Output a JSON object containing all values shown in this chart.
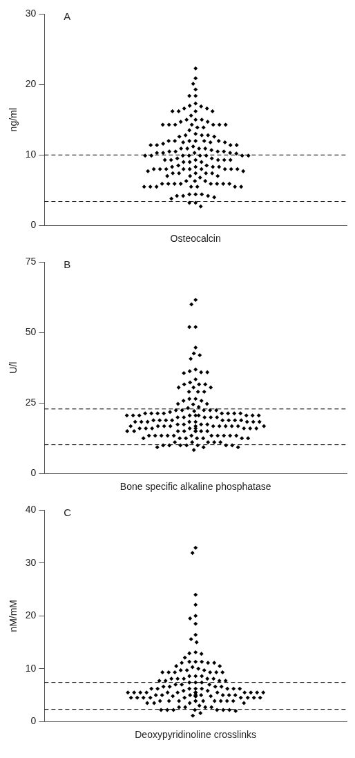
{
  "chart_data": [
    {
      "type": "scatter",
      "categories": [
        "Osteocalcin"
      ],
      "ylabel": "ng/ml",
      "ylim": [
        0,
        30
      ],
      "yticks": [
        0,
        10,
        20,
        30
      ],
      "grid": false,
      "marker": "diamond",
      "annotations": [
        "A"
      ],
      "ref_lines": [
        {
          "axis": "y",
          "value": 10,
          "line_style": "dashed"
        },
        {
          "axis": "y",
          "value": 3.4,
          "line_style": "dashed"
        }
      ],
      "series": [
        {
          "color": "#000000",
          "x": [
            "Osteocalcin",
            "Osteocalcin",
            "Osteocalcin",
            "Osteocalcin",
            "Osteocalcin",
            "Osteocalcin",
            "Osteocalcin",
            "Osteocalcin",
            "Osteocalcin",
            "Osteocalcin",
            "Osteocalcin",
            "Osteocalcin",
            "Osteocalcin",
            "Osteocalcin",
            "Osteocalcin",
            "Osteocalcin",
            "Osteocalcin",
            "Osteocalcin",
            "Osteocalcin",
            "Osteocalcin",
            "Osteocalcin",
            "Osteocalcin",
            "Osteocalcin",
            "Osteocalcin",
            "Osteocalcin",
            "Osteocalcin",
            "Osteocalcin",
            "Osteocalcin",
            "Osteocalcin",
            "Osteocalcin",
            "Osteocalcin",
            "Osteocalcin",
            "Osteocalcin",
            "Osteocalcin",
            "Osteocalcin",
            "Osteocalcin",
            "Osteocalcin",
            "Osteocalcin",
            "Osteocalcin",
            "Osteocalcin",
            "Osteocalcin",
            "Osteocalcin",
            "Osteocalcin",
            "Osteocalcin",
            "Osteocalcin",
            "Osteocalcin",
            "Osteocalcin",
            "Osteocalcin",
            "Osteocalcin",
            "Osteocalcin",
            "Osteocalcin",
            "Osteocalcin",
            "Osteocalcin",
            "Osteocalcin",
            "Osteocalcin",
            "Osteocalcin",
            "Osteocalcin",
            "Osteocalcin",
            "Osteocalcin",
            "Osteocalcin",
            "Osteocalcin",
            "Osteocalcin",
            "Osteocalcin",
            "Osteocalcin",
            "Osteocalcin",
            "Osteocalcin",
            "Osteocalcin",
            "Osteocalcin",
            "Osteocalcin",
            "Osteocalcin",
            "Osteocalcin",
            "Osteocalcin",
            "Osteocalcin",
            "Osteocalcin",
            "Osteocalcin",
            "Osteocalcin",
            "Osteocalcin",
            "Osteocalcin",
            "Osteocalcin",
            "Osteocalcin",
            "Osteocalcin",
            "Osteocalcin",
            "Osteocalcin",
            "Osteocalcin",
            "Osteocalcin",
            "Osteocalcin",
            "Osteocalcin",
            "Osteocalcin",
            "Osteocalcin",
            "Osteocalcin",
            "Osteocalcin",
            "Osteocalcin",
            "Osteocalcin",
            "Osteocalcin",
            "Osteocalcin",
            "Osteocalcin",
            "Osteocalcin",
            "Osteocalcin",
            "Osteocalcin",
            "Osteocalcin",
            "Osteocalcin",
            "Osteocalcin",
            "Osteocalcin",
            "Osteocalcin",
            "Osteocalcin",
            "Osteocalcin",
            "Osteocalcin",
            "Osteocalcin",
            "Osteocalcin",
            "Osteocalcin",
            "Osteocalcin",
            "Osteocalcin",
            "Osteocalcin",
            "Osteocalcin",
            "Osteocalcin",
            "Osteocalcin",
            "Osteocalcin",
            "Osteocalcin",
            "Osteocalcin",
            "Osteocalcin",
            "Osteocalcin",
            "Osteocalcin",
            "Osteocalcin",
            "Osteocalcin",
            "Osteocalcin",
            "Osteocalcin",
            "Osteocalcin",
            "Osteocalcin",
            "Osteocalcin",
            "Osteocalcin",
            "Osteocalcin",
            "Osteocalcin",
            "Osteocalcin",
            "Osteocalcin",
            "Osteocalcin",
            "Osteocalcin",
            "Osteocalcin",
            "Osteocalcin",
            "Osteocalcin",
            "Osteocalcin"
          ],
          "values": [
            22.3,
            20.9,
            20.1,
            19.3,
            18.4,
            18.4,
            17.3,
            17.0,
            16.9,
            16.6,
            16.6,
            16.2,
            16.2,
            16.2,
            16.2,
            15.6,
            15.0,
            15.0,
            15.0,
            14.7,
            14.7,
            14.3,
            14.3,
            14.3,
            14.3,
            14.3,
            14.3,
            14.3,
            13.9,
            13.9,
            13.5,
            13.0,
            12.8,
            12.8,
            12.8,
            12.6,
            12.6,
            12.0,
            12.0,
            12.0,
            12.0,
            12.0,
            12.0,
            11.8,
            11.8,
            11.8,
            11.6,
            11.4,
            11.4,
            11.4,
            11.4,
            11.2,
            10.9,
            10.9,
            10.9,
            10.9,
            10.7,
            10.5,
            10.5,
            10.5,
            10.5,
            10.3,
            10.3,
            10.3,
            10.3,
            10.2,
            9.9,
            9.9,
            9.9,
            9.9,
            9.9,
            9.9,
            9.9,
            9.9,
            9.5,
            9.5,
            9.3,
            9.3,
            9.3,
            9.3,
            9.3,
            9.3,
            9.0,
            9.0,
            9.0,
            8.5,
            8.5,
            8.3,
            8.3,
            8.3,
            8.3,
            8.0,
            8.0,
            8.0,
            8.0,
            8.0,
            8.0,
            8.0,
            8.0,
            8.0,
            7.7,
            7.7,
            7.4,
            7.4,
            7.4,
            7.4,
            7.4,
            7.0,
            7.0,
            7.0,
            6.8,
            6.3,
            6.3,
            6.3,
            5.9,
            5.9,
            5.9,
            5.9,
            5.9,
            5.9,
            5.9,
            5.9,
            5.5,
            5.5,
            5.5,
            5.5,
            5.5,
            5.5,
            5.5,
            4.4,
            4.4,
            4.4,
            4.2,
            4.2,
            4.2,
            4.0,
            3.8,
            3.2,
            3.2,
            2.7
          ]
        }
      ]
    },
    {
      "type": "scatter",
      "categories": [
        "Bone specific alkaline phosphatase"
      ],
      "ylabel": "U/l",
      "ylim": [
        0,
        75
      ],
      "yticks": [
        0,
        25,
        50,
        75
      ],
      "grid": false,
      "marker": "diamond",
      "annotations": [
        "B"
      ],
      "ref_lines": [
        {
          "axis": "y",
          "value": 22.9,
          "line_style": "dashed"
        },
        {
          "axis": "y",
          "value": 10.2,
          "line_style": "dashed"
        }
      ],
      "series": [
        {
          "color": "#000000",
          "x": [
            "Bone specific alkaline phosphatase",
            "Bone specific alkaline phosphatase",
            "Bone specific alkaline phosphatase",
            "Bone specific alkaline phosphatase",
            "Bone specific alkaline phosphatase",
            "Bone specific alkaline phosphatase",
            "Bone specific alkaline phosphatase",
            "Bone specific alkaline phosphatase",
            "Bone specific alkaline phosphatase",
            "Bone specific alkaline phosphatase",
            "Bone specific alkaline phosphatase",
            "Bone specific alkaline phosphatase",
            "Bone specific alkaline phosphatase",
            "Bone specific alkaline phosphatase",
            "Bone specific alkaline phosphatase",
            "Bone specific alkaline phosphatase",
            "Bone specific alkaline phosphatase",
            "Bone specific alkaline phosphatase",
            "Bone specific alkaline phosphatase",
            "Bone specific alkaline phosphatase",
            "Bone specific alkaline phosphatase",
            "Bone specific alkaline phosphatase",
            "Bone specific alkaline phosphatase",
            "Bone specific alkaline phosphatase",
            "Bone specific alkaline phosphatase",
            "Bone specific alkaline phosphatase",
            "Bone specific alkaline phosphatase",
            "Bone specific alkaline phosphatase",
            "Bone specific alkaline phosphatase",
            "Bone specific alkaline phosphatase",
            "Bone specific alkaline phosphatase",
            "Bone specific alkaline phosphatase",
            "Bone specific alkaline phosphatase",
            "Bone specific alkaline phosphatase",
            "Bone specific alkaline phosphatase",
            "Bone specific alkaline phosphatase",
            "Bone specific alkaline phosphatase",
            "Bone specific alkaline phosphatase",
            "Bone specific alkaline phosphatase",
            "Bone specific alkaline phosphatase",
            "Bone specific alkaline phosphatase",
            "Bone specific alkaline phosphatase",
            "Bone specific alkaline phosphatase",
            "Bone specific alkaline phosphatase",
            "Bone specific alkaline phosphatase",
            "Bone specific alkaline phosphatase",
            "Bone specific alkaline phosphatase",
            "Bone specific alkaline phosphatase",
            "Bone specific alkaline phosphatase",
            "Bone specific alkaline phosphatase",
            "Bone specific alkaline phosphatase",
            "Bone specific alkaline phosphatase",
            "Bone specific alkaline phosphatase",
            "Bone specific alkaline phosphatase",
            "Bone specific alkaline phosphatase",
            "Bone specific alkaline phosphatase",
            "Bone specific alkaline phosphatase",
            "Bone specific alkaline phosphatase",
            "Bone specific alkaline phosphatase",
            "Bone specific alkaline phosphatase",
            "Bone specific alkaline phosphatase",
            "Bone specific alkaline phosphatase",
            "Bone specific alkaline phosphatase",
            "Bone specific alkaline phosphatase",
            "Bone specific alkaline phosphatase",
            "Bone specific alkaline phosphatase",
            "Bone specific alkaline phosphatase",
            "Bone specific alkaline phosphatase",
            "Bone specific alkaline phosphatase",
            "Bone specific alkaline phosphatase",
            "Bone specific alkaline phosphatase",
            "Bone specific alkaline phosphatase",
            "Bone specific alkaline phosphatase",
            "Bone specific alkaline phosphatase",
            "Bone specific alkaline phosphatase",
            "Bone specific alkaline phosphatase",
            "Bone specific alkaline phosphatase",
            "Bone specific alkaline phosphatase",
            "Bone specific alkaline phosphatase",
            "Bone specific alkaline phosphatase",
            "Bone specific alkaline phosphatase",
            "Bone specific alkaline phosphatase",
            "Bone specific alkaline phosphatase",
            "Bone specific alkaline phosphatase",
            "Bone specific alkaline phosphatase",
            "Bone specific alkaline phosphatase",
            "Bone specific alkaline phosphatase",
            "Bone specific alkaline phosphatase",
            "Bone specific alkaline phosphatase",
            "Bone specific alkaline phosphatase",
            "Bone specific alkaline phosphatase",
            "Bone specific alkaline phosphatase",
            "Bone specific alkaline phosphatase",
            "Bone specific alkaline phosphatase",
            "Bone specific alkaline phosphatase",
            "Bone specific alkaline phosphatase",
            "Bone specific alkaline phosphatase",
            "Bone specific alkaline phosphatase",
            "Bone specific alkaline phosphatase",
            "Bone specific alkaline phosphatase",
            "Bone specific alkaline phosphatase",
            "Bone specific alkaline phosphatase",
            "Bone specific alkaline phosphatase",
            "Bone specific alkaline phosphatase",
            "Bone specific alkaline phosphatase",
            "Bone specific alkaline phosphatase",
            "Bone specific alkaline phosphatase",
            "Bone specific alkaline phosphatase",
            "Bone specific alkaline phosphatase",
            "Bone specific alkaline phosphatase",
            "Bone specific alkaline phosphatase",
            "Bone specific alkaline phosphatase",
            "Bone specific alkaline phosphatase",
            "Bone specific alkaline phosphatase",
            "Bone specific alkaline phosphatase",
            "Bone specific alkaline phosphatase",
            "Bone specific alkaline phosphatase",
            "Bone specific alkaline phosphatase",
            "Bone specific alkaline phosphatase",
            "Bone specific alkaline phosphatase",
            "Bone specific alkaline phosphatase",
            "Bone specific alkaline phosphatase",
            "Bone specific alkaline phosphatase",
            "Bone specific alkaline phosphatase",
            "Bone specific alkaline phosphatase",
            "Bone specific alkaline phosphatase",
            "Bone specific alkaline phosphatase",
            "Bone specific alkaline phosphatase",
            "Bone specific alkaline phosphatase",
            "Bone specific alkaline phosphatase",
            "Bone specific alkaline phosphatase",
            "Bone specific alkaline phosphatase",
            "Bone specific alkaline phosphatase",
            "Bone specific alkaline phosphatase",
            "Bone specific alkaline phosphatase",
            "Bone specific alkaline phosphatase",
            "Bone specific alkaline phosphatase",
            "Bone specific alkaline phosphatase",
            "Bone specific alkaline phosphatase",
            "Bone specific alkaline phosphatase",
            "Bone specific alkaline phosphatase",
            "Bone specific alkaline phosphatase",
            "Bone specific alkaline phosphatase"
          ],
          "values": [
            61.6,
            60.0,
            52.0,
            52.0,
            44.7,
            42.6,
            42.0,
            40.7,
            36.9,
            36.3,
            35.9,
            35.9,
            35.6,
            33.4,
            32.3,
            31.6,
            31.6,
            31.6,
            30.5,
            30.5,
            30.5,
            29.0,
            29.0,
            29.0,
            26.5,
            26.5,
            25.8,
            25.8,
            24.7,
            24.7,
            24.5,
            23.6,
            23.2,
            22.4,
            22.4,
            22.4,
            22.4,
            22.4,
            22.1,
            21.8,
            21.3,
            21.3,
            21.3,
            21.3,
            21.3,
            21.3,
            21.3,
            21.3,
            20.6,
            20.6,
            20.6,
            20.6,
            20.6,
            20.6,
            20.6,
            20.6,
            20.6,
            19.9,
            19.9,
            19.9,
            19.9,
            19.9,
            18.9,
            18.9,
            18.9,
            18.9,
            18.9,
            18.9,
            18.9,
            18.9,
            18.3,
            18.3,
            18.3,
            18.3,
            18.3,
            18.3,
            18.3,
            18.3,
            17.4,
            17.4,
            17.4,
            17.4,
            16.8,
            16.8,
            16.8,
            16.8,
            16.8,
            16.8,
            16.8,
            16.8,
            16.8,
            16.8,
            16.8,
            16.0,
            16.0,
            16.0,
            16.0,
            16.0,
            16.0,
            16.0,
            16.0,
            15.0,
            15.0,
            15.0,
            15.0,
            15.0,
            15.0,
            15.0,
            15.0,
            13.4,
            13.4,
            13.4,
            13.4,
            13.4,
            13.4,
            13.4,
            13.4,
            13.4,
            13.4,
            13.4,
            12.5,
            12.5,
            12.5,
            12.5,
            12.5,
            12.5,
            12.5,
            11.1,
            11.1,
            11.1,
            11.1,
            11.1,
            10.0,
            10.0,
            10.0,
            10.0,
            10.0,
            10.0,
            10.0,
            9.3,
            9.3,
            9.3,
            8.3
          ]
        }
      ]
    },
    {
      "type": "scatter",
      "categories": [
        "Deoxypyridinoline crosslinks"
      ],
      "ylabel": "nM/mM",
      "ylim": [
        0,
        40
      ],
      "yticks": [
        0,
        10,
        20,
        30,
        40
      ],
      "grid": false,
      "marker": "diamond",
      "annotations": [
        "C"
      ],
      "ref_lines": [
        {
          "axis": "y",
          "value": 7.4,
          "line_style": "dashed"
        },
        {
          "axis": "y",
          "value": 2.3,
          "line_style": "dashed"
        }
      ],
      "series": [
        {
          "color": "#000000",
          "x": [
            "Deoxypyridinoline crosslinks",
            "Deoxypyridinoline crosslinks",
            "Deoxypyridinoline crosslinks",
            "Deoxypyridinoline crosslinks",
            "Deoxypyridinoline crosslinks",
            "Deoxypyridinoline crosslinks",
            "Deoxypyridinoline crosslinks",
            "Deoxypyridinoline crosslinks",
            "Deoxypyridinoline crosslinks",
            "Deoxypyridinoline crosslinks",
            "Deoxypyridinoline crosslinks",
            "Deoxypyridinoline crosslinks",
            "Deoxypyridinoline crosslinks",
            "Deoxypyridinoline crosslinks",
            "Deoxypyridinoline crosslinks",
            "Deoxypyridinoline crosslinks",
            "Deoxypyridinoline crosslinks",
            "Deoxypyridinoline crosslinks",
            "Deoxypyridinoline crosslinks",
            "Deoxypyridinoline crosslinks",
            "Deoxypyridinoline crosslinks",
            "Deoxypyridinoline crosslinks",
            "Deoxypyridinoline crosslinks",
            "Deoxypyridinoline crosslinks",
            "Deoxypyridinoline crosslinks",
            "Deoxypyridinoline crosslinks",
            "Deoxypyridinoline crosslinks",
            "Deoxypyridinoline crosslinks",
            "Deoxypyridinoline crosslinks",
            "Deoxypyridinoline crosslinks",
            "Deoxypyridinoline crosslinks",
            "Deoxypyridinoline crosslinks",
            "Deoxypyridinoline crosslinks",
            "Deoxypyridinoline crosslinks",
            "Deoxypyridinoline crosslinks",
            "Deoxypyridinoline crosslinks",
            "Deoxypyridinoline crosslinks",
            "Deoxypyridinoline crosslinks",
            "Deoxypyridinoline crosslinks",
            "Deoxypyridinoline crosslinks",
            "Deoxypyridinoline crosslinks",
            "Deoxypyridinoline crosslinks",
            "Deoxypyridinoline crosslinks",
            "Deoxypyridinoline crosslinks",
            "Deoxypyridinoline crosslinks",
            "Deoxypyridinoline crosslinks",
            "Deoxypyridinoline crosslinks",
            "Deoxypyridinoline crosslinks",
            "Deoxypyridinoline crosslinks",
            "Deoxypyridinoline crosslinks",
            "Deoxypyridinoline crosslinks",
            "Deoxypyridinoline crosslinks",
            "Deoxypyridinoline crosslinks",
            "Deoxypyridinoline crosslinks",
            "Deoxypyridinoline crosslinks",
            "Deoxypyridinoline crosslinks",
            "Deoxypyridinoline crosslinks",
            "Deoxypyridinoline crosslinks",
            "Deoxypyridinoline crosslinks",
            "Deoxypyridinoline crosslinks",
            "Deoxypyridinoline crosslinks",
            "Deoxypyridinoline crosslinks",
            "Deoxypyridinoline crosslinks",
            "Deoxypyridinoline crosslinks",
            "Deoxypyridinoline crosslinks",
            "Deoxypyridinoline crosslinks",
            "Deoxypyridinoline crosslinks",
            "Deoxypyridinoline crosslinks",
            "Deoxypyridinoline crosslinks",
            "Deoxypyridinoline crosslinks",
            "Deoxypyridinoline crosslinks",
            "Deoxypyridinoline crosslinks",
            "Deoxypyridinoline crosslinks",
            "Deoxypyridinoline crosslinks",
            "Deoxypyridinoline crosslinks",
            "Deoxypyridinoline crosslinks",
            "Deoxypyridinoline crosslinks",
            "Deoxypyridinoline crosslinks",
            "Deoxypyridinoline crosslinks",
            "Deoxypyridinoline crosslinks",
            "Deoxypyridinoline crosslinks",
            "Deoxypyridinoline crosslinks",
            "Deoxypyridinoline crosslinks",
            "Deoxypyridinoline crosslinks",
            "Deoxypyridinoline crosslinks",
            "Deoxypyridinoline crosslinks",
            "Deoxypyridinoline crosslinks",
            "Deoxypyridinoline crosslinks",
            "Deoxypyridinoline crosslinks",
            "Deoxypyridinoline crosslinks",
            "Deoxypyridinoline crosslinks",
            "Deoxypyridinoline crosslinks",
            "Deoxypyridinoline crosslinks",
            "Deoxypyridinoline crosslinks",
            "Deoxypyridinoline crosslinks",
            "Deoxypyridinoline crosslinks",
            "Deoxypyridinoline crosslinks",
            "Deoxypyridinoline crosslinks",
            "Deoxypyridinoline crosslinks",
            "Deoxypyridinoline crosslinks",
            "Deoxypyridinoline crosslinks",
            "Deoxypyridinoline crosslinks",
            "Deoxypyridinoline crosslinks",
            "Deoxypyridinoline crosslinks",
            "Deoxypyridinoline crosslinks",
            "Deoxypyridinoline crosslinks",
            "Deoxypyridinoline crosslinks",
            "Deoxypyridinoline crosslinks",
            "Deoxypyridinoline crosslinks",
            "Deoxypyridinoline crosslinks",
            "Deoxypyridinoline crosslinks",
            "Deoxypyridinoline crosslinks",
            "Deoxypyridinoline crosslinks",
            "Deoxypyridinoline crosslinks",
            "Deoxypyridinoline crosslinks",
            "Deoxypyridinoline crosslinks",
            "Deoxypyridinoline crosslinks",
            "Deoxypyridinoline crosslinks",
            "Deoxypyridinoline crosslinks",
            "Deoxypyridinoline crosslinks",
            "Deoxypyridinoline crosslinks",
            "Deoxypyridinoline crosslinks",
            "Deoxypyridinoline crosslinks",
            "Deoxypyridinoline crosslinks",
            "Deoxypyridinoline crosslinks",
            "Deoxypyridinoline crosslinks",
            "Deoxypyridinoline crosslinks",
            "Deoxypyridinoline crosslinks",
            "Deoxypyridinoline crosslinks",
            "Deoxypyridinoline crosslinks",
            "Deoxypyridinoline crosslinks",
            "Deoxypyridinoline crosslinks"
          ],
          "values": [
            32.9,
            31.9,
            24.0,
            22.1,
            20.0,
            19.5,
            18.5,
            16.4,
            15.6,
            15.0,
            13.1,
            12.9,
            12.8,
            12.1,
            11.3,
            11.3,
            11.3,
            11.1,
            11.1,
            11.1,
            10.5,
            10.5,
            10.3,
            10.0,
            9.7,
            9.7,
            9.7,
            9.3,
            9.3,
            9.3,
            9.3,
            9.3,
            9.3,
            8.6,
            8.6,
            8.6,
            8.1,
            8.1,
            8.1,
            8.1,
            8.1,
            7.7,
            7.7,
            7.7,
            7.7,
            7.4,
            7.4,
            7.4,
            7.0,
            7.0,
            7.0,
            6.6,
            6.6,
            6.6,
            6.6,
            6.2,
            6.2,
            6.2,
            6.2,
            6.2,
            6.2,
            6.2,
            6.2,
            5.8,
            5.8,
            5.5,
            5.5,
            5.5,
            5.5,
            5.5,
            5.5,
            5.5,
            5.5,
            5.5,
            5.5,
            5.5,
            5.5,
            5.5,
            5.5,
            5.0,
            5.0,
            5.0,
            5.0,
            5.0,
            5.0,
            5.0,
            5.0,
            5.0,
            4.8,
            4.8,
            4.8,
            4.8,
            4.8,
            4.8,
            4.5,
            4.5,
            4.5,
            4.5,
            4.5,
            4.5,
            4.5,
            4.5,
            4.5,
            3.9,
            3.9,
            3.9,
            3.9,
            3.9,
            3.9,
            3.9,
            3.9,
            3.9,
            3.9,
            3.5,
            3.5,
            3.5,
            3.5,
            3.0,
            2.7,
            2.7,
            2.7,
            2.7,
            2.2,
            2.2,
            2.2,
            2.2,
            2.2,
            2.2,
            2.2,
            2.0,
            1.6,
            1.1
          ]
        }
      ]
    }
  ]
}
